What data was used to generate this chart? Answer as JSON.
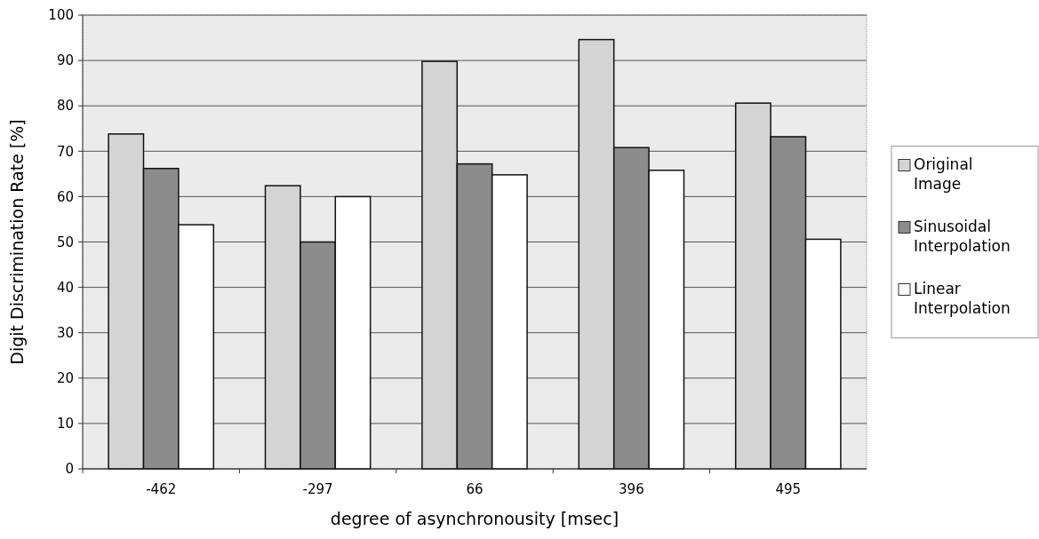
{
  "chart_data": {
    "type": "bar",
    "xlabel": "degree of asynchronousity [msec]",
    "ylabel": "Digit Discrimination Rate [%]",
    "categories": [
      "-462",
      "-297",
      "66",
      "396",
      "495"
    ],
    "series": [
      {
        "name": "Original Image",
        "color": "#d4d4d4",
        "values": [
          73.8,
          62.4,
          89.8,
          94.6,
          80.6
        ]
      },
      {
        "name": "Sinusoidal Interpolation",
        "color": "#8c8c8c",
        "values": [
          66.2,
          50,
          67.2,
          70.8,
          73.2
        ]
      },
      {
        "name": "Linear Interpolation",
        "color": "#ffffff",
        "values": [
          53.8,
          60,
          64.8,
          65.8,
          50.6
        ]
      }
    ],
    "ylim": [
      0,
      100
    ],
    "yticks": [
      0,
      10,
      20,
      30,
      40,
      50,
      60,
      70,
      80,
      90,
      100
    ],
    "grid": "y",
    "legend": "right"
  }
}
